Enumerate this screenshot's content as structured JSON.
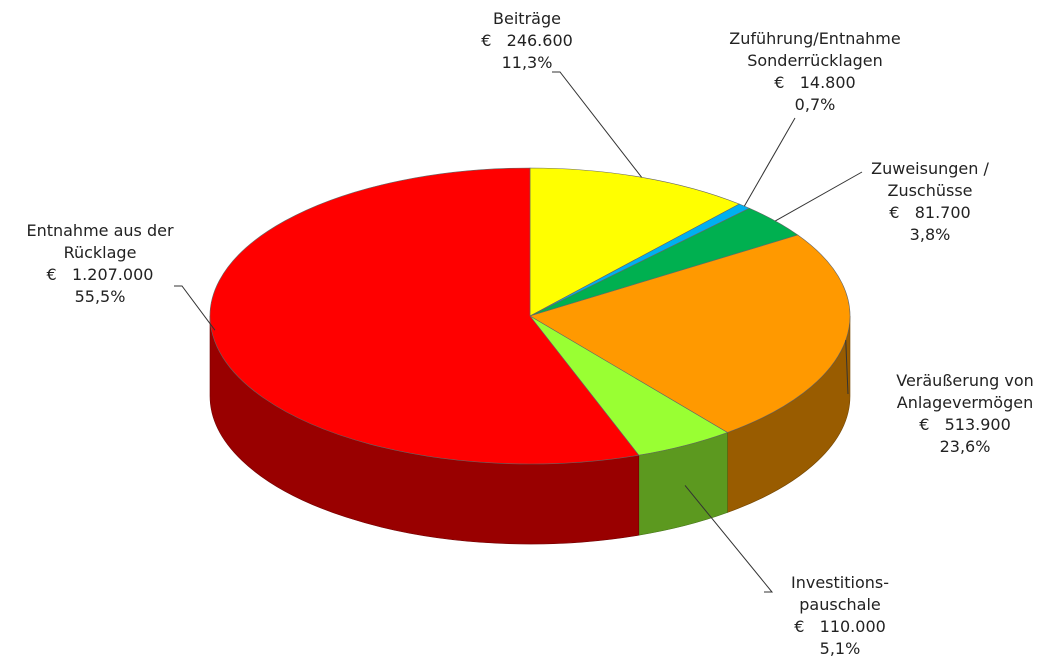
{
  "chart_data": {
    "type": "pie3d",
    "categories": [
      "Beiträge",
      "Zuführung/Entnahme\nSonderrücklagen",
      "Zuweisungen /\nZuschüsse",
      "Veräußerung von\nAnlagevermögen",
      "Investitions-\npauschale",
      "Entnahme aus der\nRücklage"
    ],
    "values": [
      246600,
      14800,
      81700,
      513900,
      110000,
      1207000
    ],
    "value_labels": [
      "€   246.600",
      "€   14.800",
      "€   81.700",
      "€   513.900",
      "€   110.000",
      "€   1.207.000"
    ],
    "percentages": [
      11.3,
      0.7,
      3.8,
      23.6,
      5.1,
      55.5
    ],
    "percentage_labels": [
      "11,3%",
      "0,7%",
      "3,8%",
      "23,6%",
      "5,1%",
      "55,5%"
    ],
    "colors": [
      "#ffff00",
      "#00b0f0",
      "#00b050",
      "#ff9900",
      "#99ff33",
      "#ff0000"
    ]
  }
}
